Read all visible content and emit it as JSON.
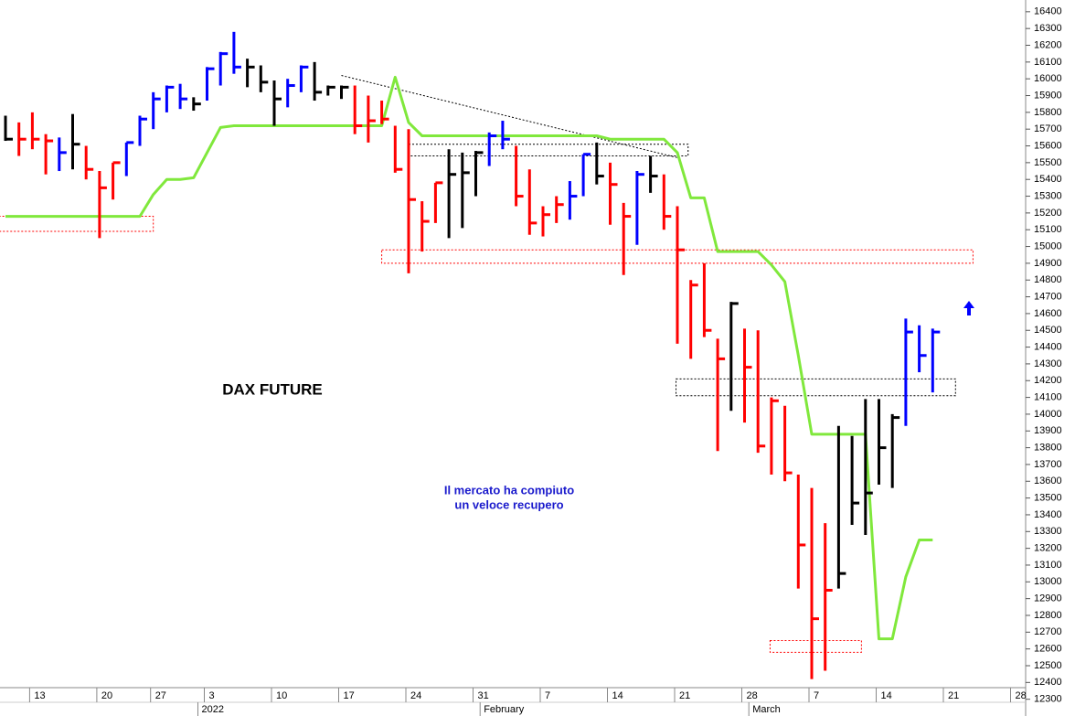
{
  "chart_data": {
    "type": "ohlc",
    "title": "DAX FUTURE",
    "annotation": [
      "Il mercato ha compiuto",
      "un veloce recupero"
    ],
    "categories": [
      null,
      null,
      "13",
      null,
      null,
      null,
      null,
      "20",
      null,
      null,
      null,
      "27",
      null,
      null,
      null,
      "3",
      null,
      null,
      null,
      null,
      "10",
      null,
      null,
      null,
      null,
      "17",
      null,
      null,
      null,
      null,
      "24",
      null,
      null,
      null,
      null,
      "31",
      null,
      null,
      null,
      null,
      "7",
      null,
      null,
      null,
      null,
      "14",
      null,
      null,
      null,
      null,
      "21",
      null,
      null,
      null,
      null,
      "28",
      null,
      null,
      null,
      null,
      "7",
      null,
      null,
      null,
      null,
      "14",
      null,
      null,
      null,
      null,
      "21",
      null,
      null,
      null,
      null,
      "28",
      null
    ],
    "x_groups": [
      {
        "label": "2022",
        "start": 15
      },
      {
        "label": "February",
        "start": 36
      },
      {
        "label": "March",
        "start": 56
      }
    ],
    "high": [
      15780,
      15740,
      15800,
      15670,
      15650,
      15790,
      15600,
      15450,
      15500,
      15620,
      15780,
      15920,
      15960,
      15970,
      15890,
      16070,
      16160,
      16280,
      16120,
      16080,
      15990,
      16000,
      16080,
      16100,
      15960,
      15960,
      15960,
      15900,
      15870,
      15720,
      15700,
      15270,
      15380,
      15580,
      15560,
      15570,
      15680,
      15750,
      15600,
      15460,
      15240,
      15300,
      15390,
      15550,
      15620,
      15500,
      15260,
      15450,
      15540,
      15430,
      15240,
      14800,
      14900,
      14450,
      14670,
      14510,
      14500,
      14100,
      14050,
      13640,
      13560,
      13350,
      13930,
      13870,
      14090,
      14090,
      14000,
      14570,
      14530,
      14510,
      null,
      null,
      null,
      null,
      null,
      null,
      null
    ],
    "low": [
      15630,
      15540,
      15580,
      15430,
      15450,
      15460,
      15400,
      15050,
      15280,
      15420,
      15600,
      15700,
      15800,
      15820,
      15810,
      15870,
      15960,
      16030,
      15950,
      15920,
      15720,
      15830,
      15920,
      15870,
      15900,
      15880,
      15670,
      15620,
      15730,
      15440,
      14840,
      14970,
      15140,
      15050,
      15110,
      15300,
      15480,
      15580,
      15240,
      15070,
      15060,
      15140,
      15160,
      15300,
      15370,
      15130,
      14830,
      15010,
      15320,
      15100,
      14420,
      14330,
      14460,
      13780,
      14020,
      13950,
      13770,
      13640,
      13600,
      12960,
      12420,
      12470,
      12960,
      13340,
      13280,
      13580,
      13560,
      13930,
      14250,
      14130,
      null,
      null,
      null,
      null,
      null,
      null,
      null
    ],
    "close": [
      15640,
      15640,
      15640,
      15630,
      15560,
      15610,
      15460,
      15350,
      15500,
      15620,
      15760,
      15880,
      15950,
      15880,
      15850,
      16060,
      16150,
      16070,
      16070,
      15980,
      15880,
      15960,
      16070,
      15920,
      15950,
      15950,
      15720,
      15750,
      15760,
      15460,
      15280,
      15150,
      15380,
      15430,
      15440,
      15560,
      15660,
      15640,
      15300,
      15140,
      15190,
      15250,
      15300,
      15550,
      15420,
      15370,
      15180,
      15430,
      15420,
      15180,
      14980,
      14770,
      14500,
      14330,
      14660,
      14280,
      13810,
      14080,
      13650,
      13220,
      12780,
      12950,
      13050,
      13470,
      13530,
      13800,
      13980,
      14490,
      14350,
      14490,
      null,
      null,
      null,
      null,
      null,
      null,
      null
    ],
    "bar_colors": [
      "#000000",
      "#ff0000",
      "#ff0000",
      "#ff0000",
      "#0000ff",
      "#000000",
      "#ff0000",
      "#ff0000",
      "#ff0000",
      "#0000ff",
      "#0000ff",
      "#0000ff",
      "#0000ff",
      "#0000ff",
      "#000000",
      "#0000ff",
      "#0000ff",
      "#0000ff",
      "#000000",
      "#000000",
      "#000000",
      "#0000ff",
      "#0000ff",
      "#000000",
      "#000000",
      "#000000",
      "#ff0000",
      "#ff0000",
      "#ff0000",
      "#ff0000",
      "#ff0000",
      "#ff0000",
      "#ff0000",
      "#000000",
      "#000000",
      "#000000",
      "#0000ff",
      "#0000ff",
      "#ff0000",
      "#ff0000",
      "#ff0000",
      "#ff0000",
      "#0000ff",
      "#0000ff",
      "#000000",
      "#ff0000",
      "#ff0000",
      "#0000ff",
      "#000000",
      "#ff0000",
      "#ff0000",
      "#ff0000",
      "#ff0000",
      "#ff0000",
      "#000000",
      "#ff0000",
      "#ff0000",
      "#ff0000",
      "#ff0000",
      "#ff0000",
      "#ff0000",
      "#ff0000",
      "#000000",
      "#000000",
      "#000000",
      "#000000",
      "#000000",
      "#0000ff",
      "#0000ff",
      "#0000ff",
      null,
      null,
      null,
      null,
      null,
      null,
      null
    ],
    "line": {
      "color": "#80e83c",
      "values": [
        15180,
        15180,
        15180,
        15180,
        15180,
        15180,
        15180,
        15180,
        15180,
        15180,
        15180,
        15310,
        15400,
        15400,
        15410,
        15560,
        15710,
        15720,
        15720,
        15720,
        15720,
        15720,
        15720,
        15720,
        15720,
        15720,
        15720,
        15720,
        15720,
        16010,
        15740,
        15660,
        15660,
        15660,
        15660,
        15660,
        15660,
        15660,
        15660,
        15660,
        15660,
        15660,
        15660,
        15660,
        15660,
        15640,
        15640,
        15640,
        15640,
        15640,
        15560,
        15290,
        15290,
        14970,
        14970,
        14970,
        14970,
        14890,
        14790,
        14350,
        13880,
        13880,
        13880,
        13880,
        13880,
        12660,
        12660,
        13030,
        13250,
        13250,
        null,
        null,
        null,
        null,
        null,
        null,
        null
      ]
    },
    "zones": [
      {
        "start": -0.5,
        "end": 11,
        "low": 15090,
        "high": 15180,
        "color": "#ff0000"
      },
      {
        "start": 28,
        "end": 72,
        "low": 14900,
        "high": 14980,
        "color": "#ff0000"
      },
      {
        "start": 30,
        "end": 50.8,
        "low": 15540,
        "high": 15610,
        "color": "#000000"
      },
      {
        "start": 49.9,
        "end": 70.7,
        "low": 14110,
        "high": 14210,
        "color": "#000000"
      },
      {
        "start": 56.9,
        "end": 63.7,
        "low": 12580,
        "high": 12650,
        "color": "#ff0000"
      }
    ],
    "trendline": {
      "start": 25,
      "end": 50,
      "from": 16020,
      "to": 15530
    },
    "ylim": [
      12200,
      16470
    ],
    "yticks": [
      12300,
      12400,
      12500,
      12600,
      12700,
      12800,
      12900,
      13000,
      13100,
      13200,
      13300,
      13400,
      13500,
      13600,
      13700,
      13800,
      13900,
      14000,
      14100,
      14200,
      14300,
      14400,
      14500,
      14600,
      14700,
      14800,
      14900,
      15000,
      15100,
      15200,
      15300,
      15400,
      15500,
      15600,
      15700,
      15800,
      15900,
      16000,
      16100,
      16200,
      16300,
      16400
    ]
  }
}
